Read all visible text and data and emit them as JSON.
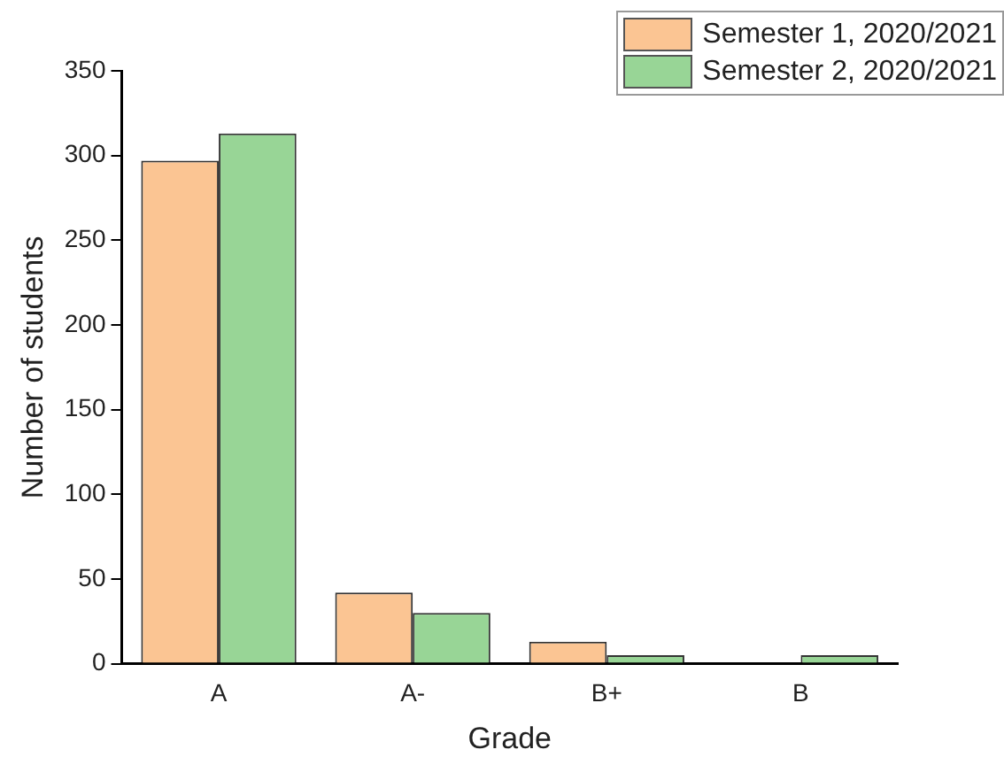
{
  "chart_data": {
    "type": "bar",
    "xlabel": "Grade",
    "ylabel": "Number of students",
    "categories": [
      "A",
      "A-",
      "B+",
      "B"
    ],
    "series": [
      {
        "name": "Semester 1, 2020/2021",
        "color": "#fbc593",
        "values": [
          297,
          42,
          13,
          0
        ]
      },
      {
        "name": "Semester 2, 2020/2021",
        "color": "#98d596",
        "values": [
          313,
          30,
          5,
          5
        ]
      }
    ],
    "ylim": [
      0,
      350
    ],
    "yticks": [
      0,
      50,
      100,
      150,
      200,
      250,
      300,
      350
    ],
    "grid": false,
    "legend": "top right"
  }
}
